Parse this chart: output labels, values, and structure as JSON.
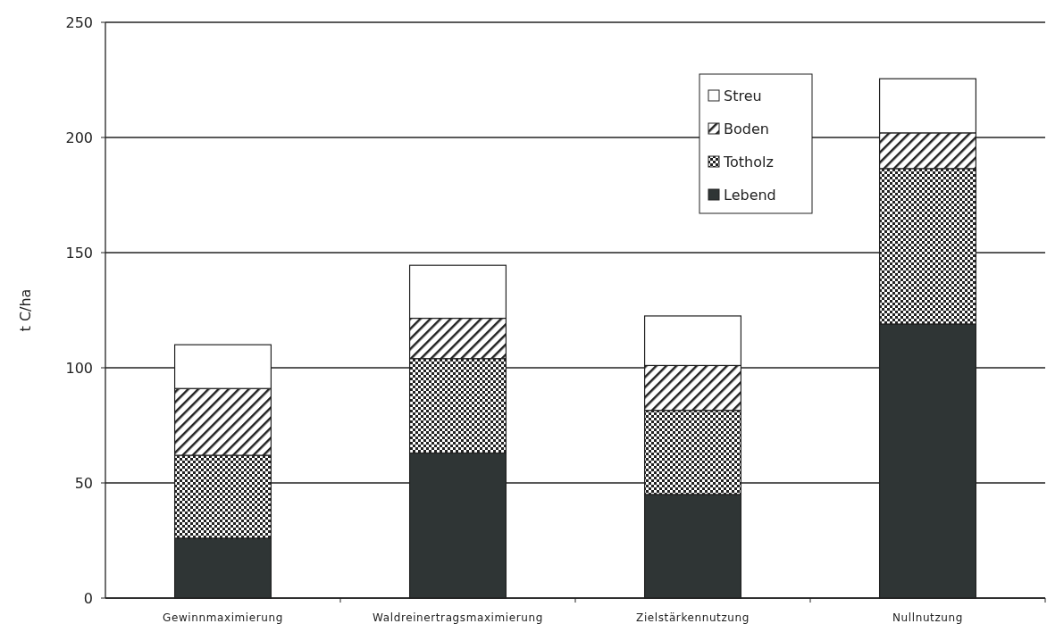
{
  "chart_data": {
    "type": "bar",
    "stacked": true,
    "ylabel": "t C/ha",
    "categories": [
      "Gewinnmaximierung",
      "Waldreinertragsmaximierung",
      "Zielstärkennutzung",
      "Nullnutzung"
    ],
    "series": [
      {
        "name": "Lebend",
        "color": "#2f3535",
        "values": [
          26,
          63,
          45,
          119
        ]
      },
      {
        "name": "Totholz",
        "color": "#222222",
        "values": [
          36,
          41,
          36.5,
          67.5
        ]
      },
      {
        "name": "Boden",
        "color": "#222222",
        "values": [
          29,
          17.5,
          19.5,
          15.5
        ]
      },
      {
        "name": "Streu",
        "color": "#ffffff",
        "values": [
          19,
          23,
          21.5,
          23.5
        ]
      }
    ],
    "ylim": [
      0,
      250
    ],
    "yticks": [
      0,
      50,
      100,
      150,
      200,
      250
    ],
    "grid": "y",
    "legend": "top right"
  }
}
